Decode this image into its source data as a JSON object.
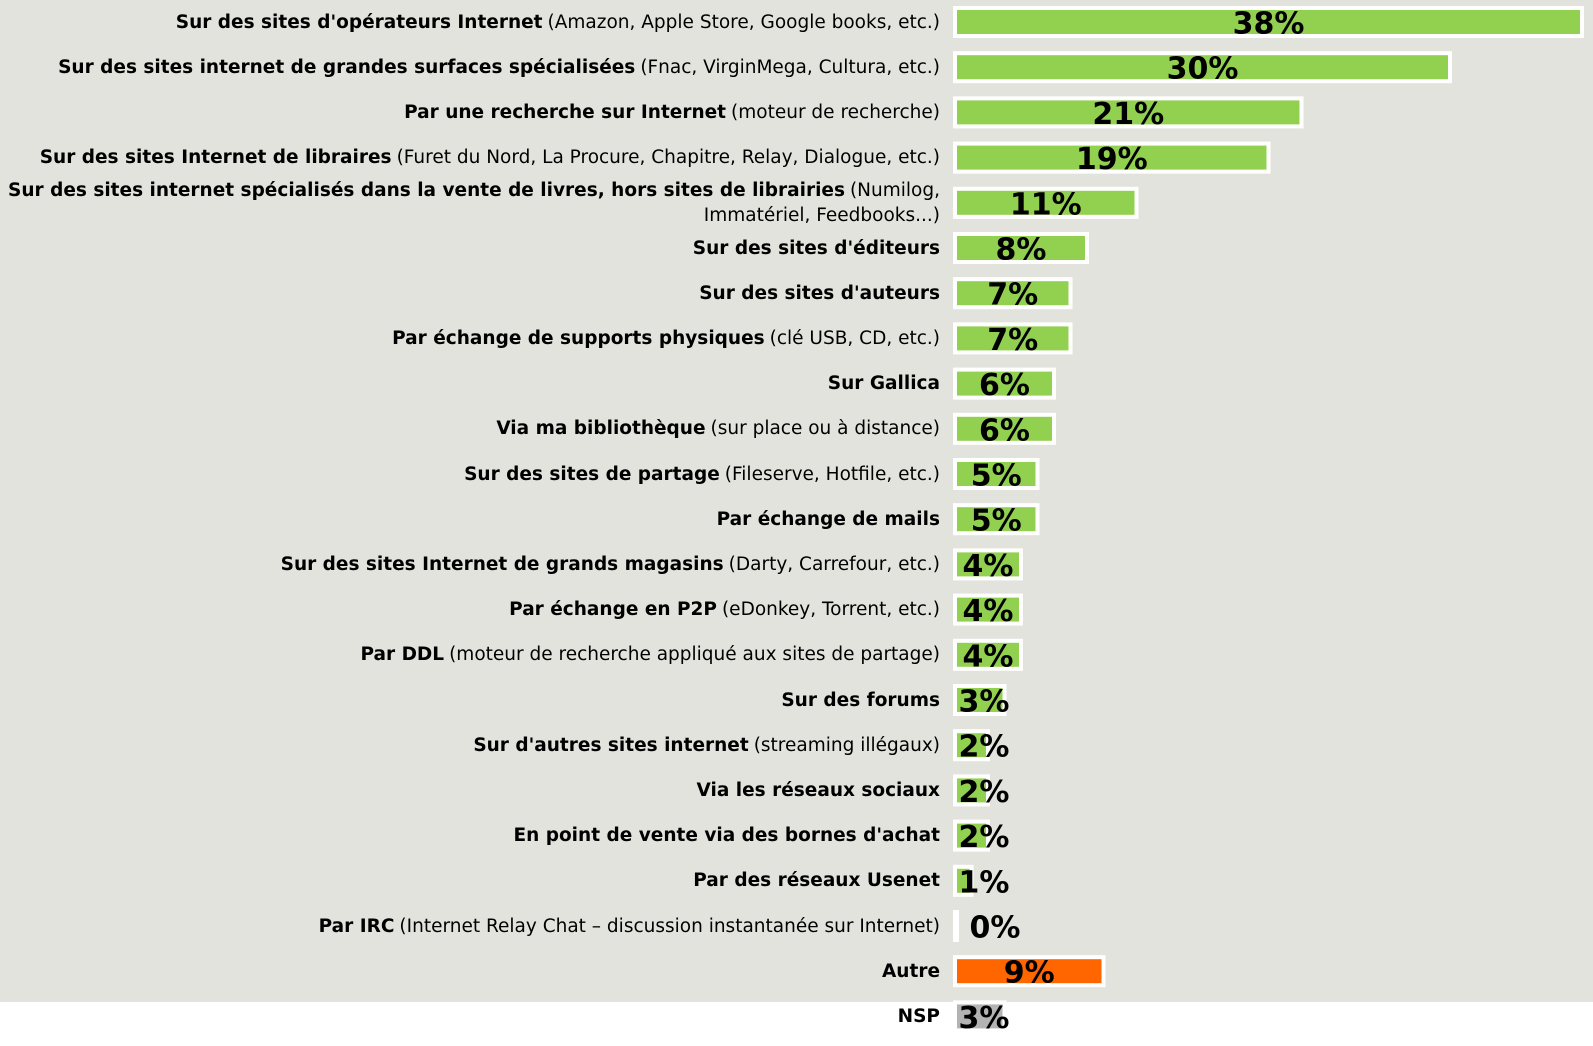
{
  "chart_data": {
    "type": "bar",
    "orientation": "horizontal",
    "categories": [
      "Sur des sites d'opérateurs Internet",
      "Sur des sites internet de grandes surfaces spécialisées",
      "Par une recherche sur Internet",
      "Sur des sites Internet de libraires",
      "Sur des sites internet spécialisés dans la vente de livres, hors sites de librairies",
      "Sur des sites d'éditeurs",
      "Sur des sites d'auteurs",
      "Par échange de supports physiques",
      "Sur Gallica",
      "Via ma bibliothèque",
      "Sur des sites de partage",
      "Par échange de mails",
      "Sur des sites Internet de grands magasins",
      "Par échange en P2P",
      "Par DDL",
      "Sur des forums",
      "Sur d'autres sites internet",
      "Via les réseaux sociaux",
      "En point de vente via des bornes d'achat",
      "Par des réseaux Usenet",
      "Par IRC",
      "Autre",
      "NSP"
    ],
    "category_details": [
      "(Amazon, Apple Store, Google books, etc.)",
      "(Fnac, VirginMega, Cultura, etc.)",
      "(moteur de recherche)",
      "(Furet du Nord, La Procure, Chapitre, Relay, Dialogue, etc.)",
      "(Numilog, Immatériel, Feedbooks...)",
      null,
      null,
      "(clé USB, CD, etc.)",
      null,
      "(sur place ou à distance)",
      "(Fileserve, Hotfile, etc.)",
      null,
      "(Darty, Carrefour, etc.)",
      "(eDonkey, Torrent, etc.)",
      "(moteur de recherche appliqué aux sites de partage)",
      null,
      "(streaming illégaux)",
      null,
      null,
      null,
      "(Internet Relay Chat – discussion instantanée sur Internet)",
      null,
      null
    ],
    "values": [
      38,
      30,
      21,
      19,
      11,
      8,
      7,
      7,
      6,
      6,
      5,
      5,
      4,
      4,
      4,
      3,
      2,
      2,
      2,
      1,
      0,
      9,
      3
    ],
    "value_labels": [
      "38%",
      "30%",
      "21%",
      "19%",
      "11%",
      "8%",
      "7%",
      "7%",
      "6%",
      "6%",
      "5%",
      "5%",
      "4%",
      "4%",
      "4%",
      "3%",
      "2%",
      "2%",
      "2%",
      "1%",
      "0%",
      "9%",
      "3%"
    ],
    "colors": [
      "#92d050",
      "#92d050",
      "#92d050",
      "#92d050",
      "#92d050",
      "#92d050",
      "#92d050",
      "#92d050",
      "#92d050",
      "#92d050",
      "#92d050",
      "#92d050",
      "#92d050",
      "#92d050",
      "#92d050",
      "#92d050",
      "#92d050",
      "#92d050",
      "#92d050",
      "#92d050",
      "#92d050",
      "#ff6600",
      "#b3b3b3"
    ]
  }
}
